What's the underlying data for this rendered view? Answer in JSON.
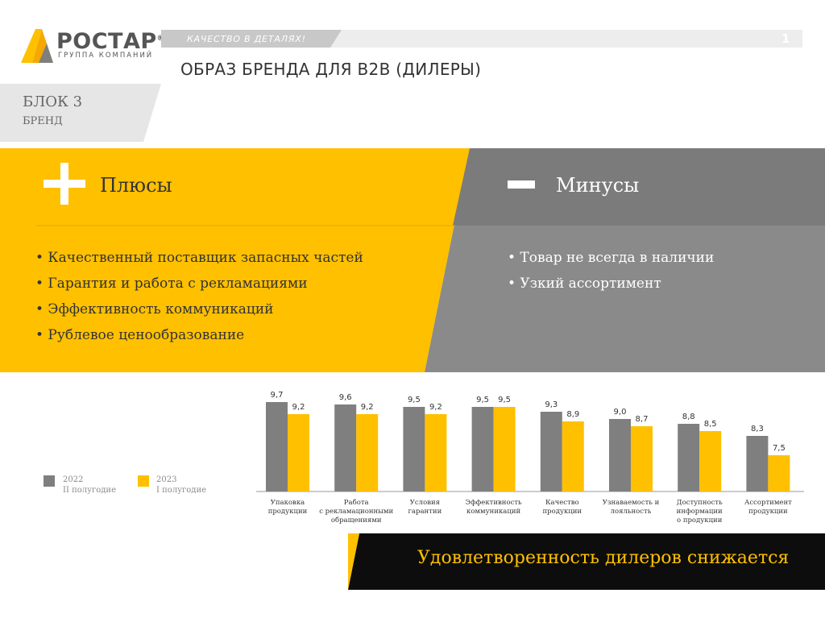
{
  "logo": {
    "word": "РОСТАР",
    "reg": "®",
    "sub": "ГРУППА КОМПАНИЙ"
  },
  "header": {
    "tagline": "КАЧЕСТВО В ДЕТАЛЯХ!",
    "slide_number": "1",
    "title": "ОБРАЗ БРЕНДА ДЛЯ B2B (ДИЛЕРЫ)"
  },
  "block": {
    "title": "БЛОК 3",
    "subtitle": "БРЕНД"
  },
  "pros": {
    "title": "Плюсы",
    "items": [
      "• Качественный поставщик запасных частей",
      "• Гарантия и работа с рекламациями",
      "• Эффективность коммуникаций",
      "• Рублевое ценообразование"
    ]
  },
  "cons": {
    "title": "Минусы",
    "items": [
      "• Товар не всегда в наличии",
      "• Узкий ассортимент"
    ]
  },
  "legend": [
    {
      "year": "2022",
      "period": "II полугодие"
    },
    {
      "year": "2023",
      "period": "I полугодие"
    }
  ],
  "colors": {
    "yellow": "#ffc000",
    "gray": "#7f7f7f",
    "panel_gray": "#8a8a8a",
    "banner": "#0d0d0d"
  },
  "chart_data": {
    "type": "bar",
    "categories": [
      [
        "Упаковка",
        "продукции"
      ],
      [
        "Работа",
        "с рекламационными",
        "обращениями"
      ],
      [
        "Условия",
        "гарантии"
      ],
      [
        "Эффективность",
        "коммуникаций"
      ],
      [
        "Качество",
        "продукции"
      ],
      [
        "Узнаваемость и",
        "лояльность"
      ],
      [
        "Доступность",
        "информации",
        "о продукции"
      ],
      [
        "Ассортимент",
        "продукции"
      ]
    ],
    "series": [
      {
        "name": "2022 II полугодие",
        "values": [
          9.7,
          9.6,
          9.5,
          9.5,
          9.3,
          9.0,
          8.8,
          8.3
        ],
        "labels": [
          "9,7",
          "9,6",
          "9,5",
          "9,5",
          "9,3",
          "9,0",
          "8,8",
          "8,3"
        ]
      },
      {
        "name": "2023 I полугодие",
        "values": [
          9.2,
          9.2,
          9.2,
          9.5,
          8.9,
          8.7,
          8.5,
          7.5
        ],
        "labels": [
          "9,2",
          "9,2",
          "9,2",
          "9,5",
          "8,9",
          "8,7",
          "8,5",
          "7,5"
        ]
      }
    ],
    "ylim": [
      0,
      10
    ],
    "legend": "left"
  },
  "conclusion": "Удовлетворенность дилеров снижается"
}
